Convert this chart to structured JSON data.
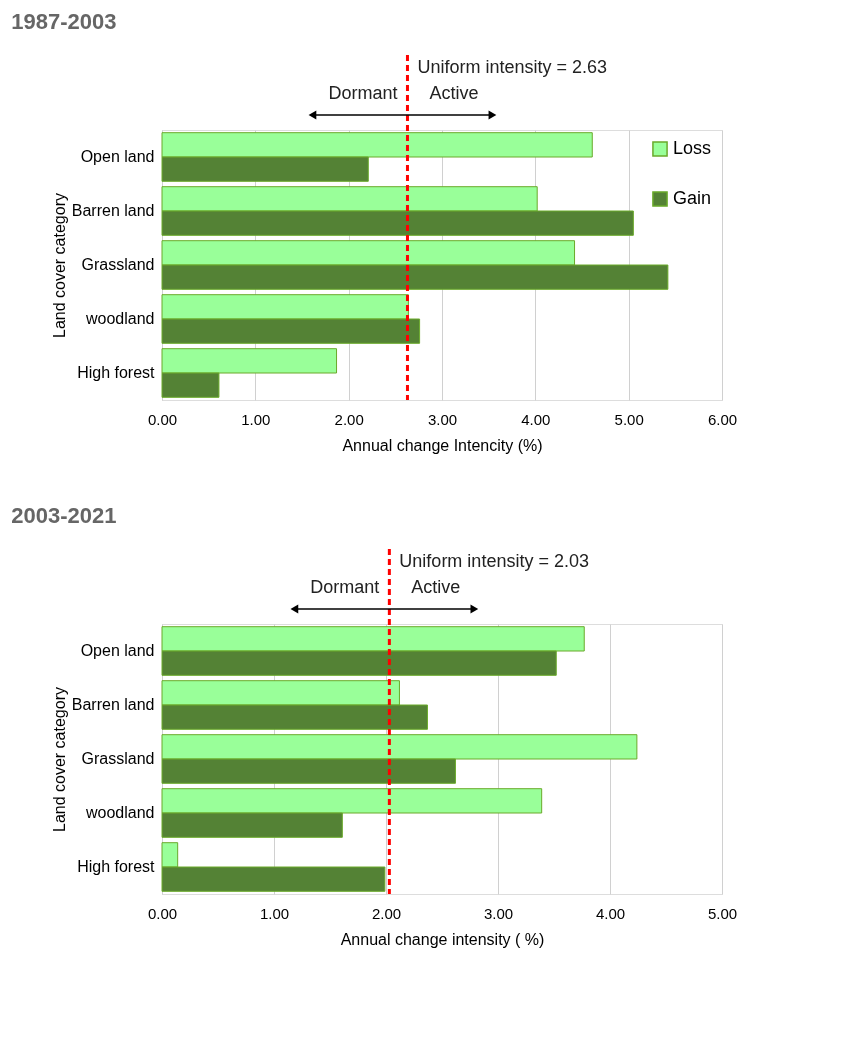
{
  "chart_data": [
    {
      "type": "bar",
      "orientation": "horizontal",
      "title": "1987-2003",
      "xlabel": "Annual change Intencity (%)",
      "ylabel": "Land cover category",
      "categories": [
        "Open land",
        "Barren land",
        "Grassland",
        "woodland",
        "High forest"
      ],
      "series": [
        {
          "name": "Loss",
          "color": "#99ff99",
          "values": [
            4.61,
            4.02,
            4.42,
            2.64,
            1.87
          ]
        },
        {
          "name": "Gain",
          "color": "#548235",
          "values": [
            2.21,
            5.05,
            5.42,
            2.76,
            0.61
          ]
        }
      ],
      "xlim": [
        0,
        6
      ],
      "xticks": [
        {
          "value": 0,
          "label": "0.00"
        },
        {
          "value": 1,
          "label": "1.00"
        },
        {
          "value": 2,
          "label": "2.00"
        },
        {
          "value": 3,
          "label": "3.00"
        },
        {
          "value": 4,
          "label": "4.00"
        },
        {
          "value": 5,
          "label": "5.00"
        },
        {
          "value": 6,
          "label": "6.00"
        }
      ],
      "ref_lines": [
        {
          "axis": "x",
          "value": 2.63,
          "label": "Uniform intensity = 2.63",
          "color": "#ff0000",
          "line_style": "dashed"
        }
      ],
      "annotations": [
        "Dormant",
        "Active"
      ],
      "grid": "x",
      "legend": "top right"
    },
    {
      "type": "bar",
      "orientation": "horizontal",
      "title": "2003-2021",
      "xlabel": "Annual change intensity ( %)",
      "ylabel": "Land cover category",
      "categories": [
        "Open land",
        "Barren land",
        "Grassland",
        "woodland",
        "High forest"
      ],
      "series": [
        {
          "name": "Loss",
          "color": "#99ff99",
          "values": [
            3.77,
            2.12,
            4.24,
            3.39,
            0.14
          ]
        },
        {
          "name": "Gain",
          "color": "#548235",
          "values": [
            3.52,
            2.37,
            2.62,
            1.61,
            1.99
          ]
        }
      ],
      "xlim": [
        0,
        5
      ],
      "xticks": [
        {
          "value": 0,
          "label": "0.00"
        },
        {
          "value": 1,
          "label": "1.00"
        },
        {
          "value": 2,
          "label": "2.00"
        },
        {
          "value": 3,
          "label": "3.00"
        },
        {
          "value": 4,
          "label": "4.00"
        },
        {
          "value": 5,
          "label": "5.00"
        }
      ],
      "ref_lines": [
        {
          "axis": "x",
          "value": 2.03,
          "label": "Uniform intensity = 2.03",
          "color": "#ff0000",
          "line_style": "dashed"
        }
      ],
      "annotations": [
        "Dormant",
        "Active"
      ],
      "grid": "x",
      "legend": "top right"
    }
  ]
}
